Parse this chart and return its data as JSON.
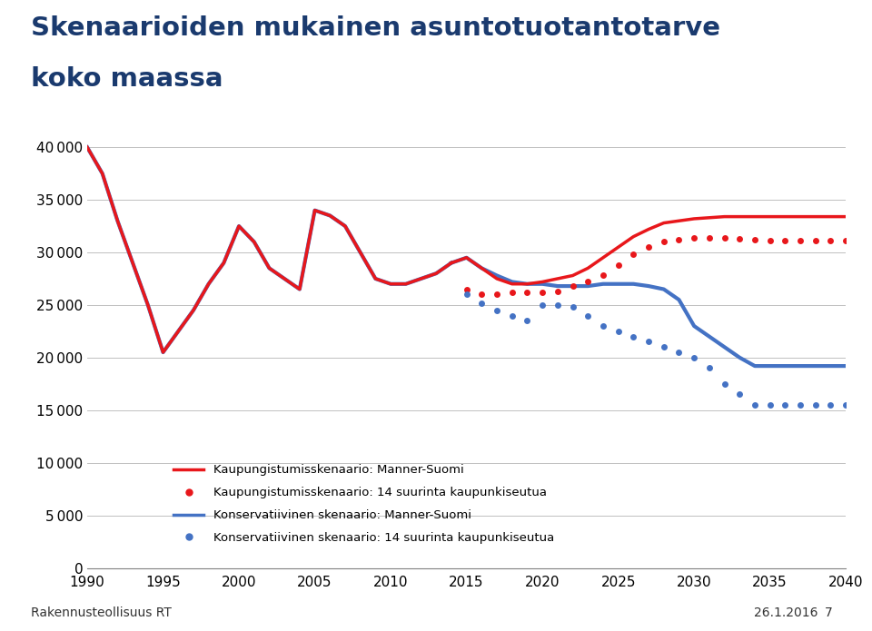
{
  "title_line1": "Skenaarioiden mukainen asuntotuotantotarve",
  "title_line2": "koko maassa",
  "footer_left": "Rakennusteollisuus RT",
  "footer_right": "26.1.2016",
  "footer_page": "7",
  "xlim": [
    1990,
    2040
  ],
  "ylim": [
    0,
    42000
  ],
  "yticks": [
    0,
    5000,
    10000,
    15000,
    20000,
    25000,
    30000,
    35000,
    40000
  ],
  "xticks": [
    1990,
    1995,
    2000,
    2005,
    2010,
    2015,
    2020,
    2025,
    2030,
    2035,
    2040
  ],
  "shared_x": [
    1990,
    1991,
    1992,
    1993,
    1994,
    1995,
    1996,
    1997,
    1998,
    1999,
    2000,
    2001,
    2002,
    2003,
    2004,
    2005,
    2006,
    2007,
    2008,
    2009,
    2010,
    2011,
    2012,
    2013,
    2014
  ],
  "shared_y": [
    40000,
    37500,
    33000,
    29000,
    25000,
    20500,
    22500,
    24500,
    27000,
    29000,
    32500,
    31000,
    28500,
    27500,
    26500,
    34000,
    33500,
    32500,
    30000,
    27500,
    27000,
    27000,
    27500,
    28000,
    29000
  ],
  "kaupunki_manner_x": [
    2014,
    2015,
    2016,
    2017,
    2018,
    2019,
    2020,
    2021,
    2022,
    2023,
    2024,
    2025,
    2026,
    2027,
    2028,
    2029,
    2030,
    2031,
    2032,
    2033,
    2034,
    2035,
    2036,
    2037,
    2038,
    2039,
    2040
  ],
  "kaupunki_manner_y": [
    29000,
    29500,
    28500,
    27500,
    27000,
    27000,
    27200,
    27500,
    27800,
    28500,
    29500,
    30500,
    31500,
    32200,
    32800,
    33000,
    33200,
    33300,
    33400,
    33400,
    33400,
    33400,
    33400,
    33400,
    33400,
    33400,
    33400
  ],
  "kaupunki_14_x": [
    2015,
    2016,
    2017,
    2018,
    2019,
    2020,
    2021,
    2022,
    2023,
    2024,
    2025,
    2026,
    2027,
    2028,
    2029,
    2030,
    2031,
    2032,
    2033,
    2034,
    2035,
    2036,
    2037,
    2038,
    2039,
    2040
  ],
  "kaupunki_14_y": [
    26500,
    26000,
    26000,
    26200,
    26200,
    26200,
    26300,
    26800,
    27200,
    27800,
    28800,
    29800,
    30500,
    31000,
    31200,
    31400,
    31400,
    31400,
    31300,
    31200,
    31100,
    31100,
    31100,
    31100,
    31100,
    31100
  ],
  "konserv_manner_x": [
    2014,
    2015,
    2016,
    2017,
    2018,
    2019,
    2020,
    2021,
    2022,
    2023,
    2024,
    2025,
    2026,
    2027,
    2028,
    2029,
    2030,
    2031,
    2032,
    2033,
    2034,
    2035,
    2036,
    2037,
    2038,
    2039,
    2040
  ],
  "konserv_manner_y": [
    29000,
    29500,
    28500,
    27800,
    27200,
    27000,
    27000,
    26800,
    26800,
    26800,
    27000,
    27000,
    27000,
    26800,
    26500,
    25500,
    23000,
    22000,
    21000,
    20000,
    19200,
    19200,
    19200,
    19200,
    19200,
    19200,
    19200
  ],
  "konserv_14_x": [
    2015,
    2016,
    2017,
    2018,
    2019,
    2020,
    2021,
    2022,
    2023,
    2024,
    2025,
    2026,
    2027,
    2028,
    2029,
    2030,
    2031,
    2032,
    2033,
    2034,
    2035,
    2036,
    2037,
    2038,
    2039,
    2040
  ],
  "konserv_14_y": [
    26000,
    25200,
    24500,
    24000,
    23500,
    25000,
    25000,
    24800,
    24000,
    23000,
    22500,
    22000,
    21500,
    21000,
    20500,
    20000,
    19000,
    17500,
    16500,
    15500,
    15500,
    15500,
    15500,
    15500,
    15500,
    15500
  ],
  "color_red": "#e8171b",
  "color_blue": "#4472c4",
  "legend_labels": [
    "Kaupungistumisskenaario: Manner-Suomi",
    "Kaupungistumisskenaario: 14 suurinta kaupunkiseutua",
    "Konservatiivinen skenaario: Manner-Suomi",
    "Konservatiivinen skenaario: 14 suurinta kaupunkiseutua"
  ]
}
